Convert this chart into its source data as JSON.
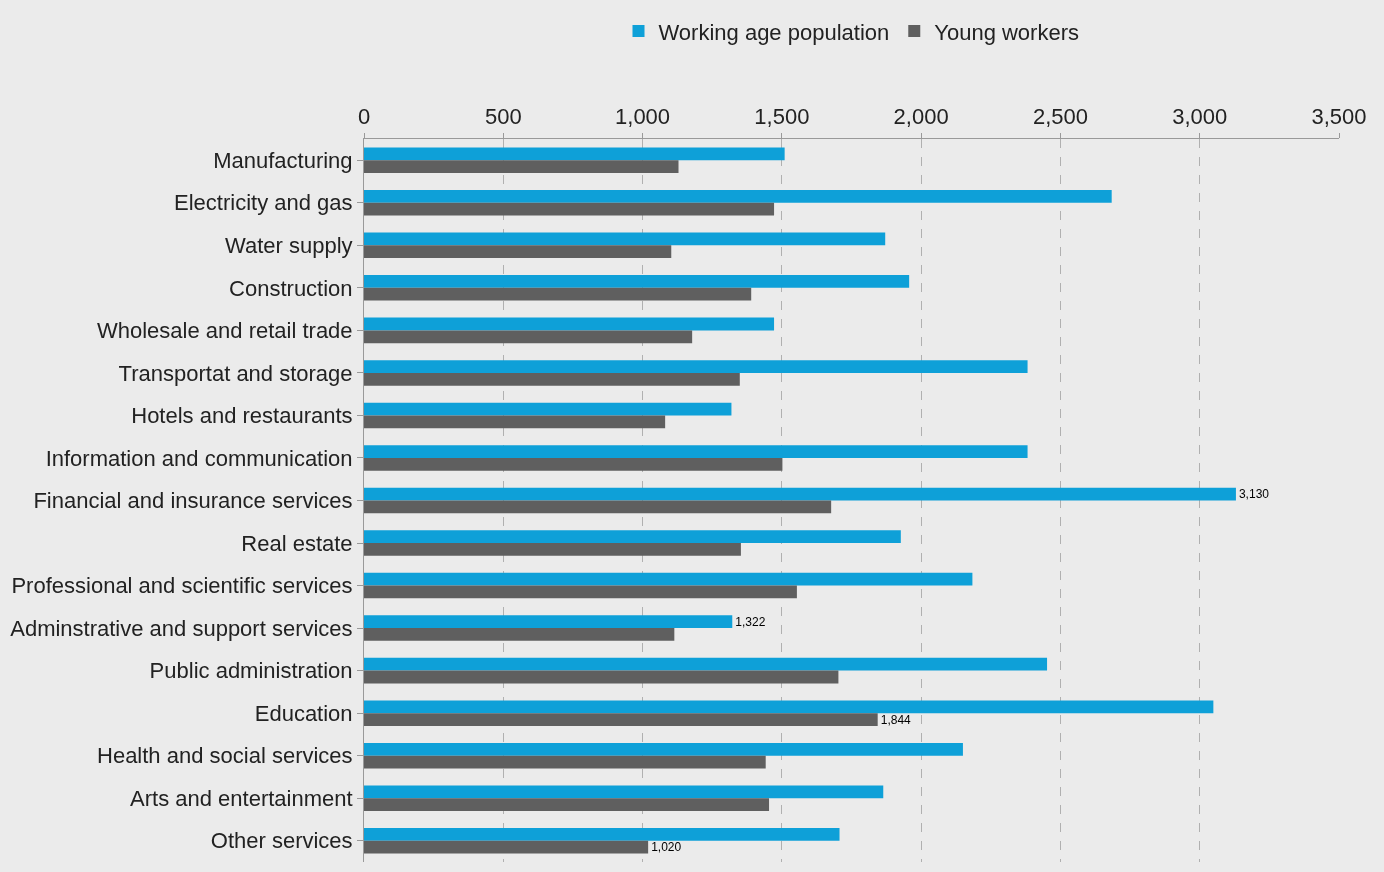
{
  "chart_data": {
    "type": "bar",
    "orientation": "horizontal",
    "categories": [
      "Manufacturing",
      "Electricity and gas",
      "Water supply",
      "Construction",
      "Wholesale and retail trade",
      "Transportat and storage",
      "Hotels and restaurants",
      "Information and communication",
      "Financial and insurance services",
      "Real estate",
      "Professional and scientific services",
      "Adminstrative and support services",
      "Public administration",
      "Education",
      "Health and social services",
      "Arts and entertainment",
      "Other services"
    ],
    "series": [
      {
        "name": "Working age population",
        "color": "#0ea0d8",
        "values": [
          1510,
          2684,
          1871,
          1957,
          1472,
          2382,
          1319,
          2382,
          3130,
          1927,
          2184,
          1322,
          2452,
          3049,
          2150,
          1864,
          1707
        ],
        "value_labels": [
          null,
          null,
          null,
          null,
          null,
          null,
          null,
          null,
          "3,130",
          null,
          null,
          "1,322",
          null,
          null,
          null,
          null,
          null
        ]
      },
      {
        "name": "Young workers",
        "color": "#5f5f5f",
        "values": [
          1129,
          1472,
          1103,
          1390,
          1178,
          1349,
          1081,
          1502,
          1677,
          1353,
          1554,
          1114,
          1703,
          1844,
          1442,
          1454,
          1020
        ],
        "value_labels": [
          null,
          null,
          null,
          null,
          null,
          null,
          null,
          null,
          null,
          null,
          null,
          null,
          null,
          "1,844",
          null,
          null,
          "1,020"
        ]
      }
    ],
    "xlim": [
      0,
      3500
    ],
    "xticks": [
      0,
      500,
      {
        "value": 1000,
        "label": "1,000"
      },
      {
        "value": 1500,
        "label": "1,500"
      },
      {
        "value": 2000,
        "label": "2,000"
      },
      {
        "value": 2500,
        "label": "2,500"
      },
      {
        "value": 3000,
        "label": "3,000"
      },
      {
        "value": 3500,
        "label": "3,500"
      }
    ],
    "grid": "x",
    "legend": "top"
  }
}
